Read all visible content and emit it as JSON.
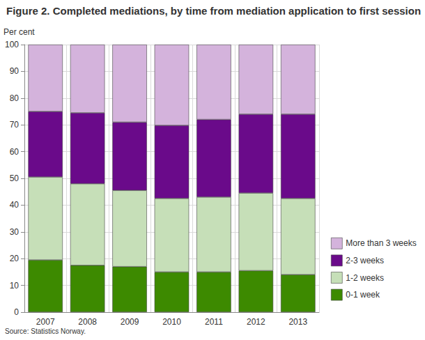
{
  "chart_data": {
    "type": "bar",
    "title": "Figure 2. Completed mediations, by time from mediation application to first session",
    "y_label": "Per cent",
    "source": "Source: Statistics Norway.",
    "categories": [
      "2007",
      "2008",
      "2009",
      "2010",
      "2011",
      "2012",
      "2013"
    ],
    "series": [
      {
        "name": "0-1 week",
        "color": "#3d8a00",
        "values": [
          19.5,
          17.5,
          17,
          15,
          15,
          15.5,
          14
        ]
      },
      {
        "name": "1-2 weeks",
        "color": "#c6dfb8",
        "values": [
          31,
          30.5,
          28.5,
          27.5,
          28,
          29,
          28.5
        ]
      },
      {
        "name": "2-3 weeks",
        "color": "#6a0a8a",
        "values": [
          24.5,
          26.5,
          25.5,
          27.3,
          29,
          29.5,
          31.5
        ]
      },
      {
        "name": "More than 3 weeks",
        "color": "#d4b3dc",
        "values": [
          25,
          25.5,
          29,
          30.2,
          28,
          26,
          26
        ]
      }
    ],
    "stacked": true,
    "ylim": [
      0,
      100
    ],
    "yticks": [
      0,
      10,
      20,
      30,
      40,
      50,
      60,
      70,
      80,
      90,
      100
    ],
    "grid": true,
    "legend": "bottom-right"
  }
}
